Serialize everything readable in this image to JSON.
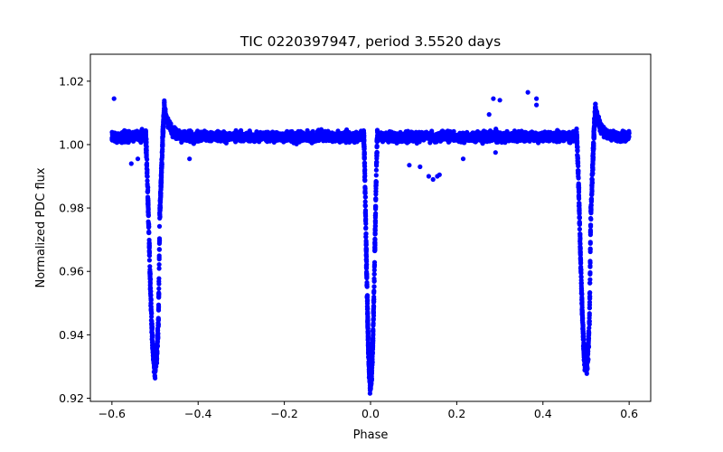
{
  "chart_data": {
    "type": "scatter",
    "title": "TIC 0220397947, period 3.5520 days",
    "xlabel": "Phase",
    "ylabel": "Normalized PDC flux",
    "xlim": [
      -0.65,
      0.65
    ],
    "ylim": [
      0.919,
      1.0285
    ],
    "xticks": [
      -0.6,
      -0.4,
      -0.2,
      0.0,
      0.2,
      0.4,
      0.6
    ],
    "xtick_labels": [
      "−0.6",
      "−0.4",
      "−0.2",
      "0.0",
      "0.2",
      "0.4",
      "0.6"
    ],
    "yticks": [
      0.92,
      0.94,
      0.96,
      0.98,
      1.0,
      1.02
    ],
    "ytick_labels": [
      "0.92",
      "0.94",
      "0.96",
      "0.98",
      "1.00",
      "1.02"
    ],
    "grid": false,
    "marker_color": "#0000ff",
    "eclipses": [
      {
        "phase": -0.5,
        "min_flux": 0.93
      },
      {
        "phase": 0.0,
        "min_flux": 0.9245
      },
      {
        "phase": 0.5,
        "min_flux": 0.93
      }
    ],
    "post_eclipse_peaks": [
      {
        "phase": -0.485,
        "flux": 1.024
      },
      {
        "phase": 0.515,
        "flux": 1.024
      }
    ],
    "baseline_flux": 1.0025,
    "outliers": [
      {
        "x": -0.595,
        "y": 1.0145
      },
      {
        "x": -0.555,
        "y": 0.994
      },
      {
        "x": -0.54,
        "y": 0.9955
      },
      {
        "x": -0.42,
        "y": 0.9955
      },
      {
        "x": 0.09,
        "y": 0.9935
      },
      {
        "x": 0.115,
        "y": 0.993
      },
      {
        "x": 0.135,
        "y": 0.99
      },
      {
        "x": 0.145,
        "y": 0.989
      },
      {
        "x": 0.155,
        "y": 0.99
      },
      {
        "x": 0.16,
        "y": 0.9905
      },
      {
        "x": 0.215,
        "y": 0.9955
      },
      {
        "x": 0.285,
        "y": 1.0145
      },
      {
        "x": 0.3,
        "y": 1.014
      },
      {
        "x": 0.365,
        "y": 1.0165
      },
      {
        "x": 0.385,
        "y": 1.0125
      },
      {
        "x": 0.385,
        "y": 1.0145
      },
      {
        "x": 0.29,
        "y": 0.9975
      },
      {
        "x": 0.275,
        "y": 1.0095
      }
    ]
  }
}
